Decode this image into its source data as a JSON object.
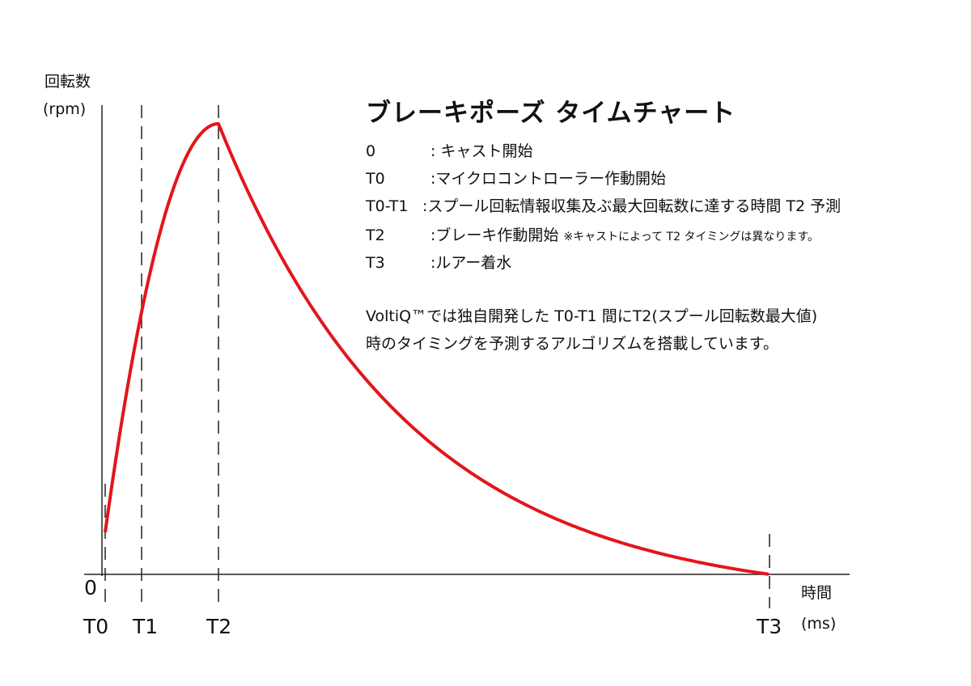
{
  "title": "ブレーキポーズ タイムチャート",
  "legend": [
    {
      "key": "0",
      "text": ": キャスト開始",
      "note": ""
    },
    {
      "key": "T0",
      "text": ":マイクロコントローラー作動開始",
      "note": ""
    },
    {
      "key": "T0-T1",
      "text": ":スプール回転情報収集及ぶ最大回転数に達する時間 T2 予測",
      "note": ""
    },
    {
      "key": "T2",
      "text": ":ブレーキ作動開始",
      "note": "※キャストによって T2 タイミングは異なります。"
    },
    {
      "key": "T3",
      "text": ":ルアー着水",
      "note": ""
    }
  ],
  "description": [
    "VoltiQ™では独自開発した T0-T1 間にT2(スプール回転数最大値)",
    "時のタイミングを予測するアルゴリズムを搭載しています。"
  ],
  "chart_data": {
    "type": "line",
    "title": "ブレーキポーズ タイムチャート",
    "ylabel": "回転数",
    "yunit": "(rpm)",
    "xlabel": "時間",
    "xunit": "(ms)",
    "origin_label": "0",
    "x_markers": [
      "T0",
      "T1",
      "T2",
      "T3"
    ],
    "series": [
      {
        "color": "#e2161b",
        "shape": "rises steeply from T0 to a peak at T2, then decays to 0 at T3"
      }
    ],
    "grid": false
  }
}
